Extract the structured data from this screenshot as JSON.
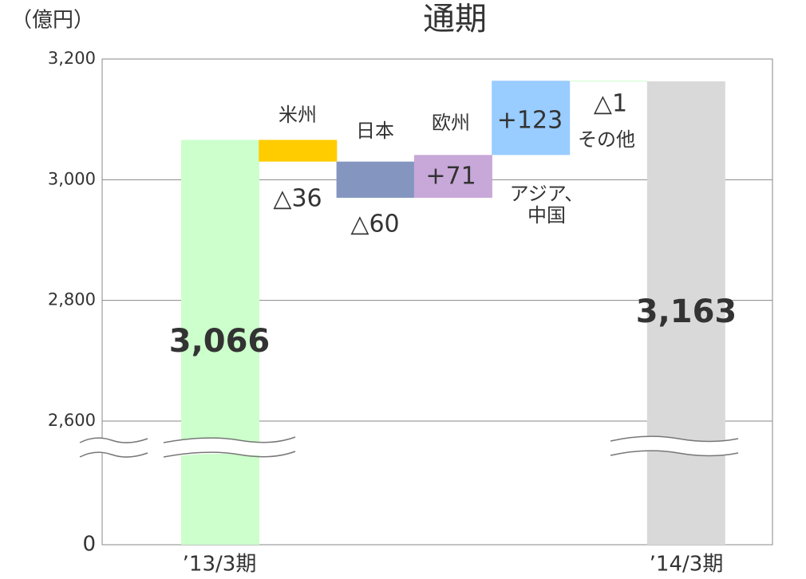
{
  "chart_data": {
    "type": "waterfall",
    "title": "通期",
    "y_label": "（億円）",
    "categories": [
      "’13/3期",
      "米州",
      "日本",
      "欧州",
      "アジア、中国",
      "その他",
      "’14/3期"
    ],
    "values": [
      3066,
      -36,
      -60,
      71,
      123,
      -1,
      3163
    ],
    "value_labels": [
      "3,066",
      "△36",
      "△60",
      "+71",
      "+123",
      "△1",
      "3,163"
    ],
    "colors": [
      "#ccffcc",
      "#ffcc00",
      "#8496c0",
      "#c8a8d8",
      "#99ccff",
      "#ccffcc",
      "#d9d9d9"
    ],
    "ylim": [
      0,
      3200
    ],
    "yticks": [
      0,
      {
        "value": 2600,
        "label": "2,600"
      },
      {
        "value": 2800,
        "label": "2,800"
      },
      {
        "value": 3000,
        "label": "3,000"
      },
      {
        "value": 3200,
        "label": "3,200"
      }
    ],
    "grid": true
  }
}
